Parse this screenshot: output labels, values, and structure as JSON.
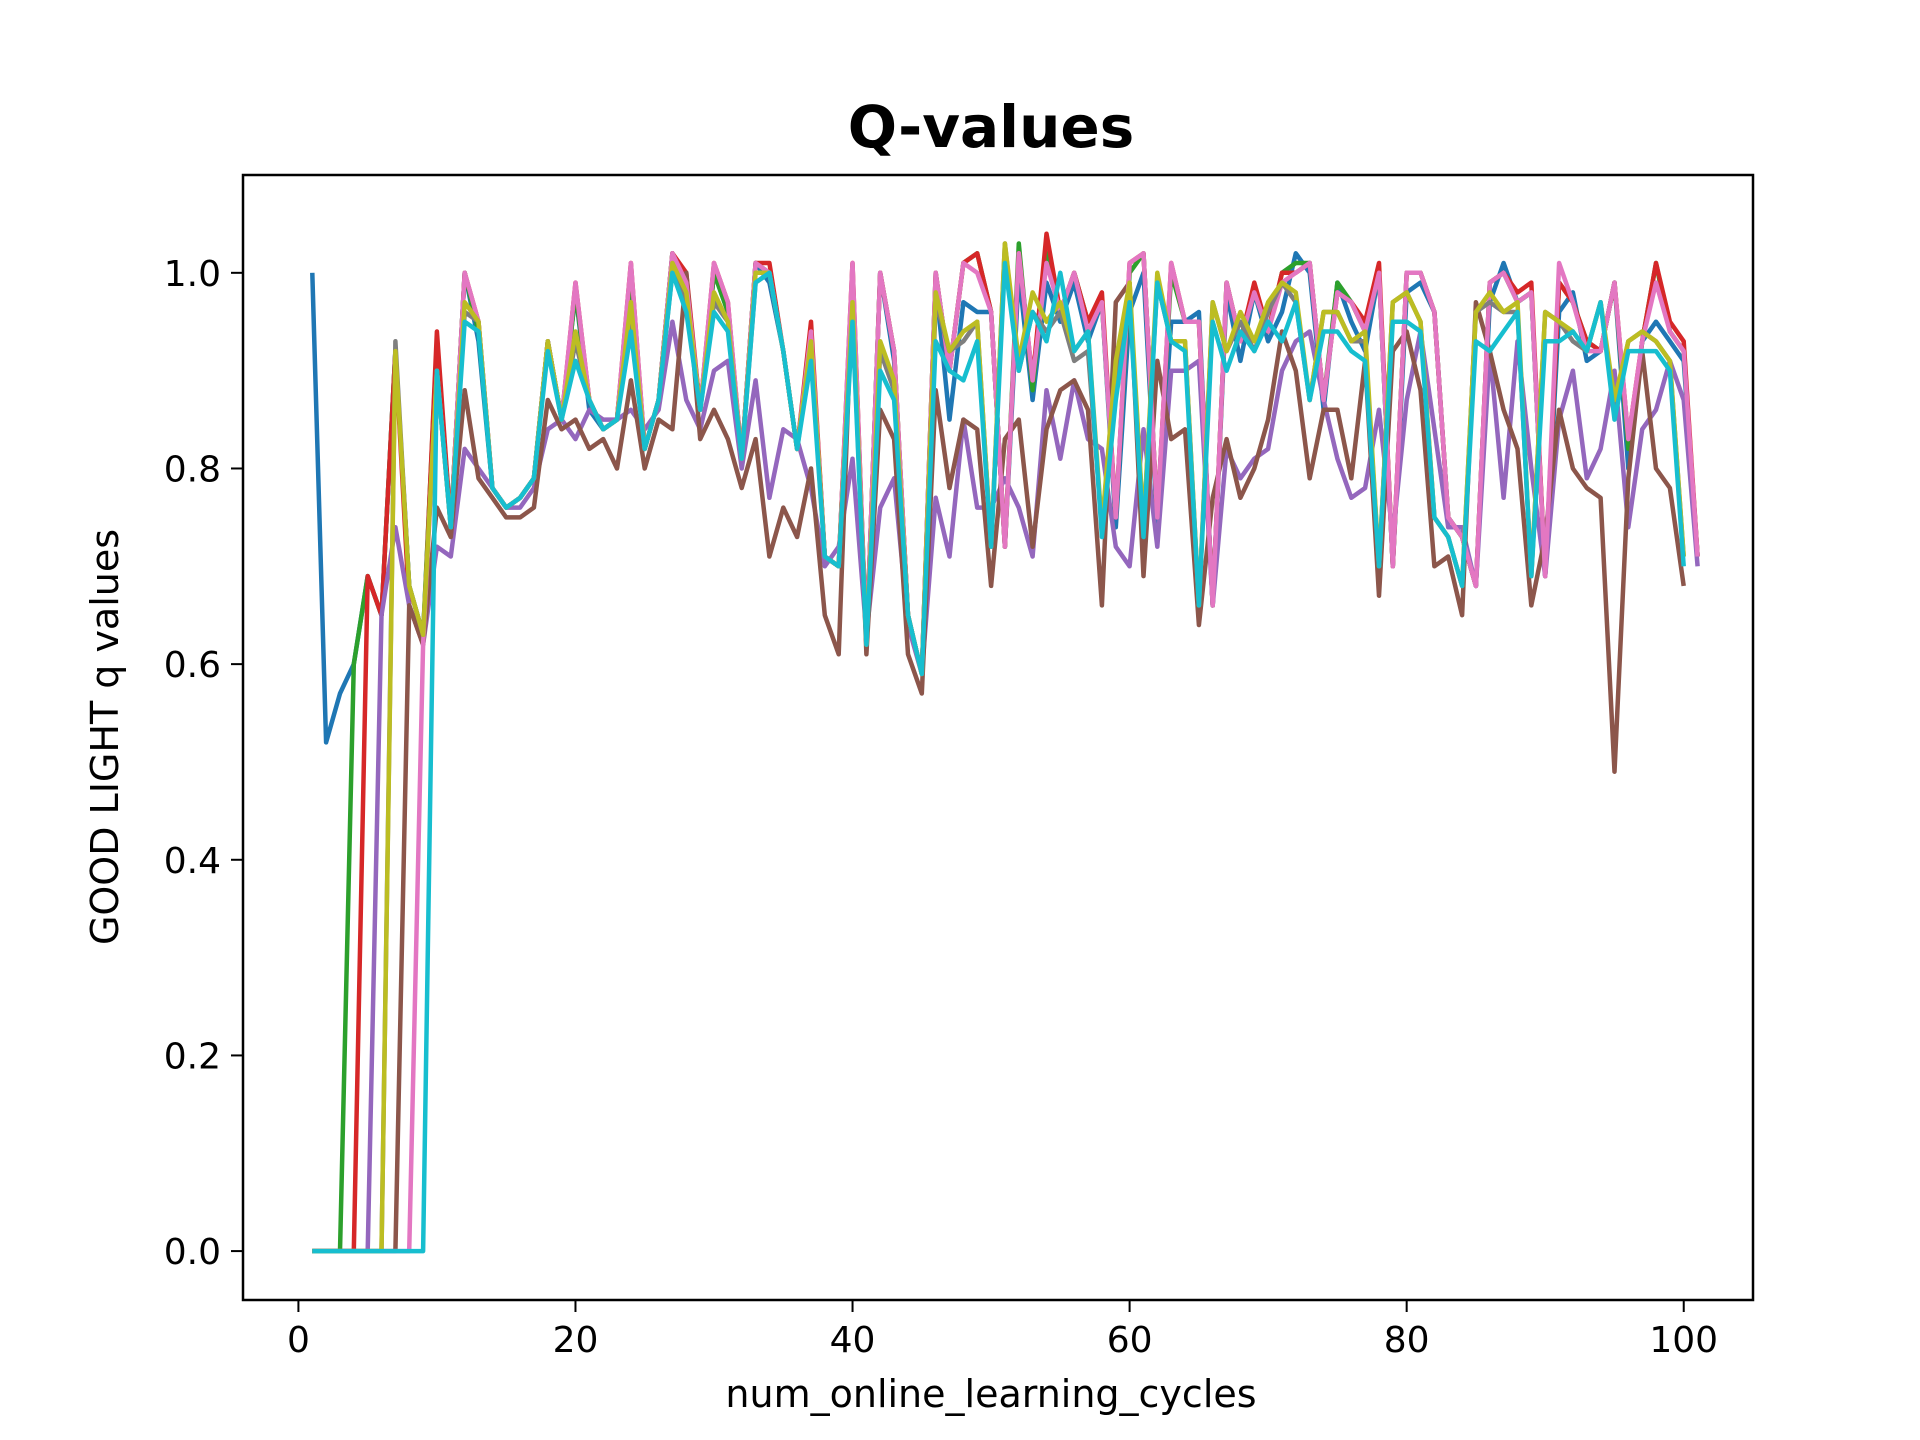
{
  "chart_data": {
    "type": "line",
    "title": "Q-values",
    "xlabel": "num_online_learning_cycles",
    "ylabel": "GOOD LIGHT q values",
    "xlim": [
      -4,
      105
    ],
    "ylim": [
      -0.05,
      1.1
    ],
    "xticks": [
      0,
      20,
      40,
      60,
      80,
      100
    ],
    "xtick_labels": [
      "0",
      "20",
      "40",
      "60",
      "80",
      "100"
    ],
    "yticks": [
      0.0,
      0.2,
      0.4,
      0.6,
      0.8,
      1.0
    ],
    "ytick_labels": [
      "0.0",
      "0.2",
      "0.4",
      "0.6",
      "0.8",
      "1.0"
    ],
    "grid": false,
    "legend": "none",
    "series": [
      {
        "color": "#1f77b4",
        "start": 1,
        "values": [
          1.0,
          0.52,
          0.57,
          0.6,
          0.69,
          0.65,
          0.92,
          0.68,
          0.63,
          0.92,
          0.74,
          1.0,
          0.93,
          0.78,
          0.76,
          0.77,
          0.79,
          0.93,
          0.85,
          0.98,
          0.86,
          0.84,
          0.85,
          1.0,
          0.82,
          0.87,
          1.02,
          0.99,
          0.86,
          1.0,
          0.96,
          0.81,
          1.01,
          0.99,
          0.92,
          0.82,
          0.94,
          0.71,
          0.7,
          1.0,
          0.62,
          1.0,
          0.91,
          0.65,
          0.59,
          0.99,
          0.85,
          0.97,
          0.96,
          0.96,
          0.72,
          1.0,
          0.87,
          0.99,
          0.95,
          0.99,
          0.93,
          0.97,
          0.74,
          0.96,
          1.0,
          0.74,
          0.95,
          0.95,
          0.96,
          0.66,
          0.98,
          0.91,
          0.98,
          0.93,
          0.96,
          1.02,
          1.0,
          0.86,
          0.99,
          0.95,
          0.92,
          1.0,
          0.7,
          0.98,
          0.99,
          0.96,
          0.75,
          0.73,
          0.68,
          0.97,
          1.01,
          0.97,
          0.98,
          0.69,
          0.96,
          0.98,
          0.91,
          0.92,
          0.99,
          0.8,
          0.93,
          0.95,
          0.93,
          0.91,
          0.71
        ]
      },
      {
        "color": "#ff7f0e",
        "start": 1,
        "values": [
          0.0,
          0.0,
          0.0
        ]
      },
      {
        "color": "#2ca02c",
        "start": 1,
        "values": [
          0.0,
          0.0,
          0.0,
          0.6,
          0.69,
          0.65,
          0.92,
          0.68,
          0.63,
          0.93,
          0.74,
          1.0,
          0.94,
          0.78,
          0.76,
          0.77,
          0.79,
          0.93,
          0.85,
          0.98,
          0.87,
          0.84,
          0.85,
          1.0,
          0.82,
          0.87,
          1.02,
          0.99,
          0.86,
          1.0,
          0.96,
          0.81,
          1.01,
          1.0,
          0.92,
          0.82,
          0.94,
          0.71,
          0.7,
          1.0,
          0.62,
          1.0,
          0.92,
          0.65,
          0.59,
          1.0,
          0.9,
          1.01,
          1.02,
          0.96,
          0.72,
          1.03,
          0.88,
          1.02,
          0.96,
          1.0,
          0.95,
          0.97,
          0.75,
          1.0,
          1.02,
          0.75,
          1.0,
          0.95,
          0.95,
          0.66,
          0.99,
          0.93,
          0.98,
          0.94,
          1.0,
          1.01,
          1.01,
          0.87,
          0.99,
          0.97,
          0.94,
          1.0,
          0.7,
          1.0,
          1.0,
          0.96,
          0.75,
          0.73,
          0.68,
          0.99,
          1.0,
          0.97,
          0.98,
          0.69,
          0.99,
          0.97,
          0.93,
          0.92,
          0.99,
          0.82,
          0.93,
          1.01,
          0.94,
          0.92,
          0.71
        ]
      },
      {
        "color": "#d62728",
        "start": 1,
        "values": [
          0.0,
          0.0,
          0.0,
          0.0,
          0.69,
          0.65,
          0.92,
          0.66,
          0.62,
          0.94,
          0.74,
          1.0,
          0.95,
          0.78,
          0.76,
          0.77,
          0.79,
          0.93,
          0.85,
          0.99,
          0.87,
          0.84,
          0.85,
          1.01,
          0.82,
          0.87,
          1.02,
          1.0,
          0.86,
          1.01,
          0.97,
          0.81,
          1.01,
          1.01,
          0.92,
          0.82,
          0.95,
          0.71,
          0.7,
          1.01,
          0.62,
          1.0,
          0.92,
          0.65,
          0.59,
          1.0,
          0.9,
          1.01,
          1.02,
          0.96,
          0.72,
          1.02,
          0.89,
          1.04,
          0.96,
          1.0,
          0.95,
          0.98,
          0.75,
          1.01,
          1.02,
          0.75,
          1.01,
          0.95,
          0.95,
          0.66,
          0.99,
          0.93,
          0.99,
          0.94,
          1.0,
          1.0,
          1.01,
          0.87,
          0.98,
          0.97,
          0.95,
          1.01,
          0.7,
          1.0,
          1.0,
          0.96,
          0.75,
          0.73,
          0.68,
          0.99,
          1.0,
          0.98,
          0.99,
          0.69,
          0.99,
          0.97,
          0.93,
          0.92,
          0.99,
          0.83,
          0.93,
          1.01,
          0.95,
          0.93,
          0.71
        ]
      },
      {
        "color": "#9467bd",
        "start": 1,
        "values": [
          0.0,
          0.0,
          0.0,
          0.0,
          0.0,
          0.65,
          0.74,
          0.66,
          0.62,
          0.72,
          0.71,
          0.82,
          0.8,
          0.78,
          0.76,
          0.76,
          0.78,
          0.84,
          0.85,
          0.83,
          0.86,
          0.85,
          0.85,
          0.86,
          0.84,
          0.86,
          0.95,
          0.87,
          0.84,
          0.9,
          0.91,
          0.8,
          0.89,
          0.77,
          0.84,
          0.83,
          0.78,
          0.7,
          0.72,
          0.81,
          0.63,
          0.76,
          0.79,
          0.64,
          0.59,
          0.77,
          0.71,
          0.85,
          0.76,
          0.76,
          0.79,
          0.76,
          0.71,
          0.88,
          0.81,
          0.89,
          0.83,
          0.82,
          0.72,
          0.7,
          0.84,
          0.72,
          0.9,
          0.9,
          0.91,
          0.66,
          0.82,
          0.79,
          0.81,
          0.82,
          0.9,
          0.93,
          0.94,
          0.87,
          0.81,
          0.77,
          0.78,
          0.86,
          0.73,
          0.87,
          0.94,
          0.84,
          0.74,
          0.74,
          0.68,
          0.92,
          0.77,
          0.93,
          0.8,
          0.69,
          0.85,
          0.9,
          0.79,
          0.82,
          0.9,
          0.74,
          0.84,
          0.86,
          0.91,
          0.87,
          0.7
        ]
      },
      {
        "color": "#8c564b",
        "start": 1,
        "values": [
          0.0,
          0.0,
          0.0,
          0.0,
          0.0,
          0.0,
          0.0,
          0.66,
          0.62,
          0.76,
          0.73,
          0.88,
          0.79,
          0.77,
          0.75,
          0.75,
          0.76,
          0.87,
          0.84,
          0.85,
          0.82,
          0.83,
          0.8,
          0.89,
          0.8,
          0.85,
          0.84,
          1.0,
          0.83,
          0.86,
          0.83,
          0.78,
          0.83,
          0.71,
          0.76,
          0.73,
          0.8,
          0.65,
          0.61,
          0.99,
          0.61,
          0.86,
          0.83,
          0.61,
          0.57,
          0.88,
          0.78,
          0.85,
          0.84,
          0.68,
          0.83,
          0.85,
          0.72,
          0.84,
          0.88,
          0.89,
          0.86,
          0.66,
          0.97,
          0.99,
          0.69,
          0.91,
          0.83,
          0.84,
          0.64,
          0.77,
          0.83,
          0.77,
          0.8,
          0.85,
          0.94,
          0.9,
          0.79,
          0.86,
          0.86,
          0.79,
          0.91,
          0.67,
          0.92,
          0.94,
          0.88,
          0.7,
          0.71,
          0.65,
          0.97,
          0.92,
          0.86,
          0.82,
          0.66,
          0.73,
          0.86,
          0.8,
          0.78,
          0.77,
          0.49,
          0.79,
          0.92,
          0.8,
          0.78,
          0.68
        ]
      },
      {
        "color": "#e377c2",
        "start": 1,
        "values": [
          0.0,
          0.0,
          0.0,
          0.0,
          0.0,
          0.0,
          0.0,
          0.0,
          0.62,
          0.9,
          0.74,
          1.0,
          0.95,
          0.78,
          0.76,
          0.77,
          0.79,
          0.93,
          0.85,
          0.99,
          0.87,
          0.84,
          0.85,
          1.01,
          0.82,
          0.87,
          1.02,
          0.99,
          0.86,
          1.01,
          0.97,
          0.81,
          1.01,
          1.0,
          0.92,
          0.82,
          0.94,
          0.71,
          0.7,
          1.01,
          0.62,
          1.0,
          0.92,
          0.65,
          0.59,
          1.0,
          0.9,
          1.01,
          1.0,
          0.96,
          0.72,
          1.02,
          0.89,
          1.01,
          0.96,
          1.0,
          0.94,
          0.97,
          0.75,
          1.01,
          1.02,
          0.75,
          1.01,
          0.95,
          0.95,
          0.66,
          0.99,
          0.93,
          0.98,
          0.94,
          0.99,
          1.0,
          1.01,
          0.87,
          0.98,
          0.97,
          0.94,
          1.0,
          0.7,
          1.0,
          1.0,
          0.96,
          0.75,
          0.73,
          0.68,
          0.99,
          1.0,
          0.97,
          0.98,
          0.69,
          1.01,
          0.97,
          0.92,
          0.92,
          0.99,
          0.83,
          0.93,
          0.99,
          0.94,
          0.92,
          0.71
        ]
      },
      {
        "color": "#7f7f7f",
        "start": 1,
        "values": [
          0.0,
          0.0,
          0.0,
          0.0,
          0.0,
          0.0,
          0.93,
          0.68,
          0.63,
          0.9,
          0.74,
          0.96,
          0.95,
          0.78,
          0.76,
          0.77,
          0.79,
          0.93,
          0.85,
          0.93,
          0.87,
          0.84,
          0.85,
          0.96,
          0.82,
          0.87,
          1.0,
          0.97,
          0.86,
          0.97,
          0.95,
          0.81,
          0.99,
          1.0,
          0.92,
          0.82,
          0.92,
          0.71,
          0.7,
          0.96,
          0.62,
          0.92,
          0.88,
          0.65,
          0.59,
          0.97,
          0.92,
          0.93,
          0.95,
          0.72,
          1.03,
          0.9,
          0.96,
          0.94,
          0.96,
          0.91,
          0.92,
          0.74,
          0.9,
          0.98,
          0.74,
          0.99,
          0.93,
          0.93,
          0.66,
          0.97,
          0.92,
          0.95,
          0.92,
          0.96,
          0.99,
          0.97,
          0.87,
          0.96,
          0.96,
          0.93,
          0.93,
          0.7,
          0.97,
          0.98,
          0.95,
          0.75,
          0.73,
          0.68,
          0.96,
          0.97,
          0.96,
          0.96,
          0.69,
          0.96,
          0.95,
          0.93,
          0.92,
          0.97,
          0.86,
          0.93,
          0.94,
          0.93,
          0.91,
          0.71
        ]
      },
      {
        "color": "#bcbd22",
        "start": 1,
        "values": [
          0.0,
          0.0,
          0.0,
          0.0,
          0.0,
          0.0,
          0.92,
          0.68,
          0.63,
          0.9,
          0.74,
          0.97,
          0.95,
          0.78,
          0.76,
          0.77,
          0.79,
          0.93,
          0.85,
          0.94,
          0.87,
          0.84,
          0.85,
          0.97,
          0.82,
          0.87,
          1.01,
          0.98,
          0.86,
          0.98,
          0.95,
          0.81,
          1.0,
          1.0,
          0.92,
          0.82,
          0.93,
          0.71,
          0.7,
          0.97,
          0.62,
          0.93,
          0.89,
          0.65,
          0.59,
          0.98,
          0.92,
          0.94,
          0.95,
          0.72,
          1.03,
          0.91,
          0.98,
          0.95,
          0.97,
          0.92,
          0.94,
          0.74,
          0.91,
          0.99,
          0.74,
          1.0,
          0.93,
          0.93,
          0.66,
          0.97,
          0.92,
          0.96,
          0.93,
          0.97,
          0.99,
          0.98,
          0.87,
          0.96,
          0.96,
          0.93,
          0.94,
          0.7,
          0.97,
          0.98,
          0.95,
          0.75,
          0.73,
          0.68,
          0.96,
          0.98,
          0.96,
          0.97,
          0.69,
          0.96,
          0.95,
          0.94,
          0.92,
          0.97,
          0.87,
          0.93,
          0.94,
          0.93,
          0.91,
          0.71
        ]
      },
      {
        "color": "#17becf",
        "start": 1,
        "values": [
          0.0,
          0.0,
          0.0,
          0.0,
          0.0,
          0.0,
          0.0,
          0.0,
          0.0,
          0.9,
          0.74,
          0.95,
          0.94,
          0.78,
          0.76,
          0.77,
          0.79,
          0.92,
          0.85,
          0.91,
          0.87,
          0.84,
          0.85,
          0.94,
          0.82,
          0.87,
          1.0,
          0.96,
          0.86,
          0.96,
          0.94,
          0.81,
          0.99,
          1.0,
          0.92,
          0.82,
          0.91,
          0.71,
          0.7,
          0.95,
          0.62,
          0.9,
          0.87,
          0.65,
          0.59,
          0.93,
          0.9,
          0.89,
          0.93,
          0.72,
          1.01,
          0.9,
          0.96,
          0.93,
          1.0,
          0.92,
          0.94,
          0.73,
          0.87,
          0.97,
          0.73,
          0.99,
          0.93,
          0.92,
          0.66,
          0.95,
          0.9,
          0.94,
          0.92,
          0.95,
          0.93,
          0.97,
          0.87,
          0.94,
          0.94,
          0.92,
          0.91,
          0.7,
          0.95,
          0.95,
          0.94,
          0.75,
          0.73,
          0.68,
          0.93,
          0.92,
          0.94,
          0.96,
          0.69,
          0.93,
          0.93,
          0.94,
          0.92,
          0.97,
          0.85,
          0.92,
          0.92,
          0.92,
          0.9,
          0.7
        ]
      }
    ]
  }
}
